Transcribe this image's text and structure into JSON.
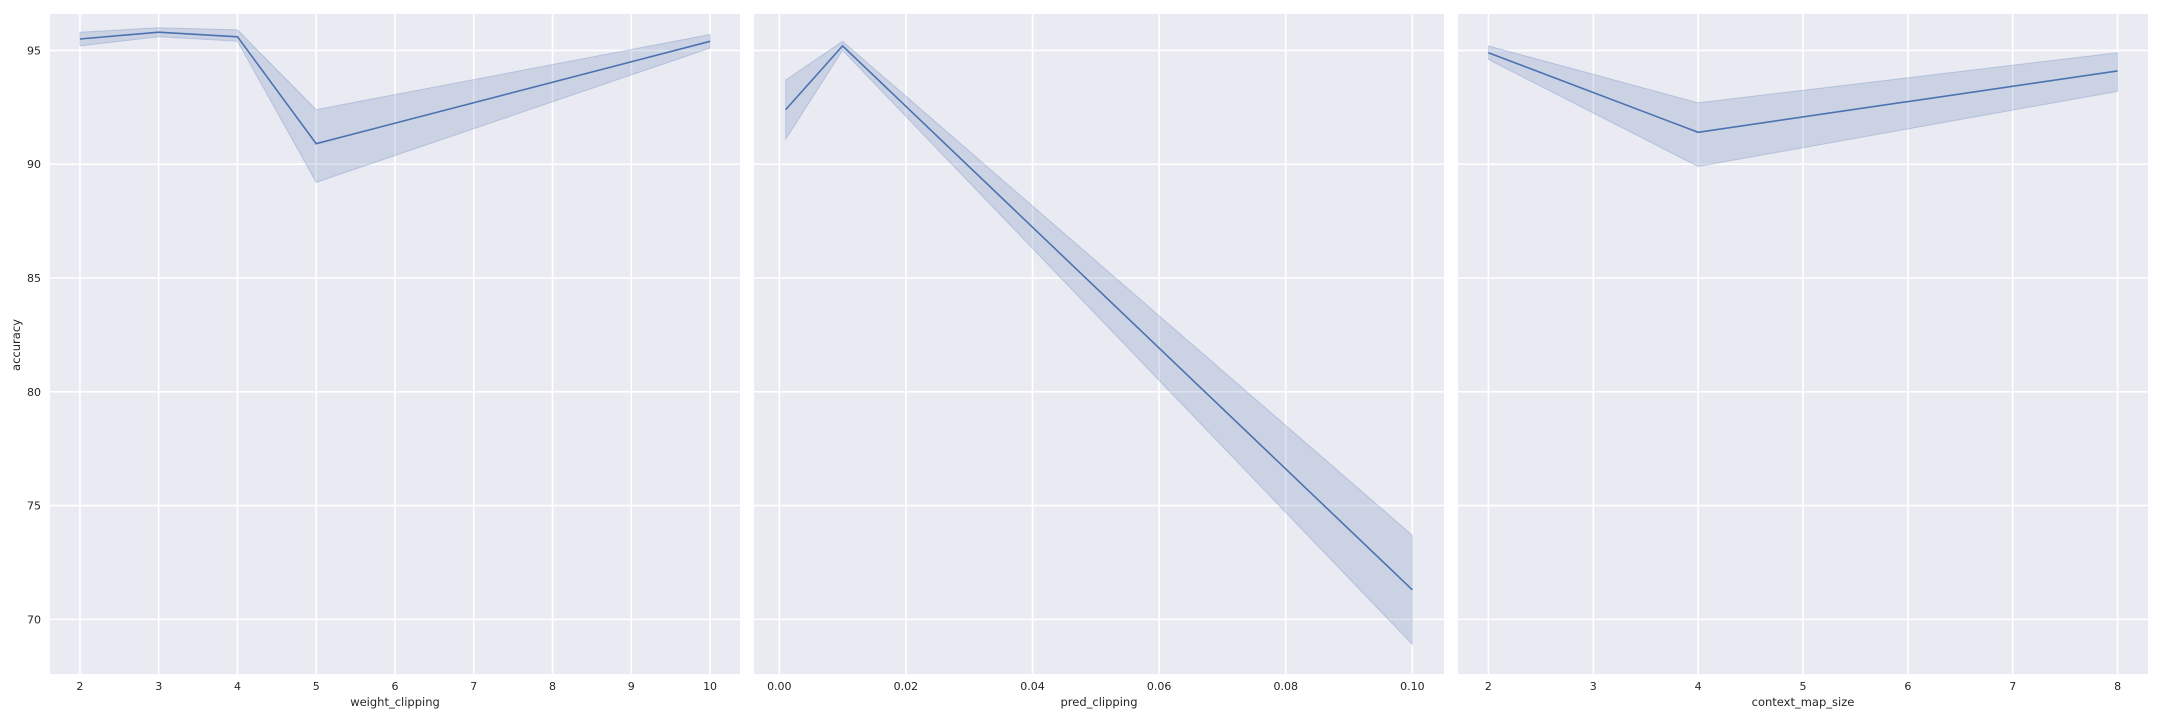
{
  "chart_data": [
    {
      "type": "line",
      "xlabel": "weight_clipping",
      "ylabel": "accuracy",
      "xlim": [
        1.62,
        10.38
      ],
      "ylim": [
        67.6,
        96.6
      ],
      "xticks": [
        "2",
        "3",
        "4",
        "5",
        "6",
        "7",
        "8",
        "9",
        "10"
      ],
      "yticks": [
        "70",
        "75",
        "80",
        "85",
        "90",
        "95"
      ],
      "grid": true,
      "series": [
        {
          "x": [
            2,
            3,
            4,
            5,
            10
          ],
          "y": [
            95.5,
            95.8,
            95.6,
            90.9,
            95.4
          ],
          "ci_low": [
            95.2,
            95.6,
            95.4,
            89.2,
            95.1
          ],
          "ci_high": [
            95.8,
            96.0,
            95.9,
            92.4,
            95.7
          ]
        }
      ]
    },
    {
      "type": "line",
      "xlabel": "pred_clipping",
      "ylabel": "",
      "xlim": [
        -0.004,
        0.105
      ],
      "ylim": [
        67.6,
        96.6
      ],
      "xticks": [
        "0.00",
        "0.02",
        "0.04",
        "0.06",
        "0.08",
        "0.10"
      ],
      "yticks": [],
      "grid": true,
      "series": [
        {
          "x": [
            0.001,
            0.01,
            0.1
          ],
          "y": [
            92.4,
            95.2,
            71.3
          ],
          "ci_low": [
            91.1,
            95.0,
            68.9
          ],
          "ci_high": [
            93.7,
            95.4,
            73.7
          ]
        }
      ]
    },
    {
      "type": "line",
      "xlabel": "context_map_size",
      "ylabel": "",
      "xlim": [
        1.71,
        8.29
      ],
      "ylim": [
        67.6,
        96.6
      ],
      "xticks": [
        "2",
        "3",
        "4",
        "5",
        "6",
        "7",
        "8"
      ],
      "yticks": [],
      "grid": true,
      "series": [
        {
          "x": [
            2,
            4,
            8
          ],
          "y": [
            94.9,
            91.4,
            94.1
          ],
          "ci_low": [
            94.6,
            89.9,
            93.2
          ],
          "ci_high": [
            95.2,
            92.7,
            94.9
          ]
        }
      ]
    }
  ],
  "colors": {
    "panel_background": "#eaeaf2",
    "grid": "#ffffff",
    "line": "#4c72b0",
    "text": "#262626"
  }
}
